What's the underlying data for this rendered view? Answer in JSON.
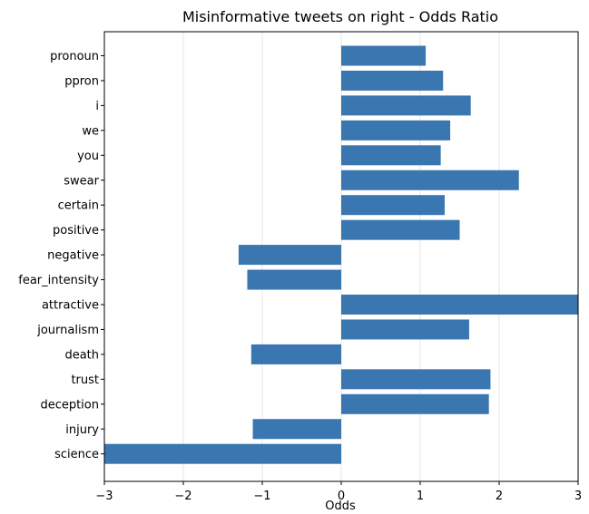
{
  "chart_data": {
    "type": "bar",
    "orientation": "horizontal",
    "title": "Misinformative tweets on right - Odds Ratio",
    "xlabel": "Odds",
    "ylabel": "",
    "xlim": [
      -3,
      3
    ],
    "xticks": [
      "−3",
      "−2",
      "−1",
      "0",
      "1",
      "2",
      "3"
    ],
    "grid": "vertical",
    "legend": "none",
    "bar_color": "#3a76b0",
    "categories": [
      "pronoun",
      "ppron",
      "i",
      "we",
      "you",
      "swear",
      "certain",
      "positive",
      "negative",
      "fear_intensity",
      "attractive",
      "journalism",
      "death",
      "trust",
      "deception",
      "injury",
      "science"
    ],
    "values": [
      1.07,
      1.29,
      1.64,
      1.38,
      1.26,
      2.25,
      1.31,
      1.5,
      -1.3,
      -1.19,
      3.0,
      1.62,
      -1.14,
      1.89,
      1.87,
      -1.12,
      -3.0
    ]
  }
}
